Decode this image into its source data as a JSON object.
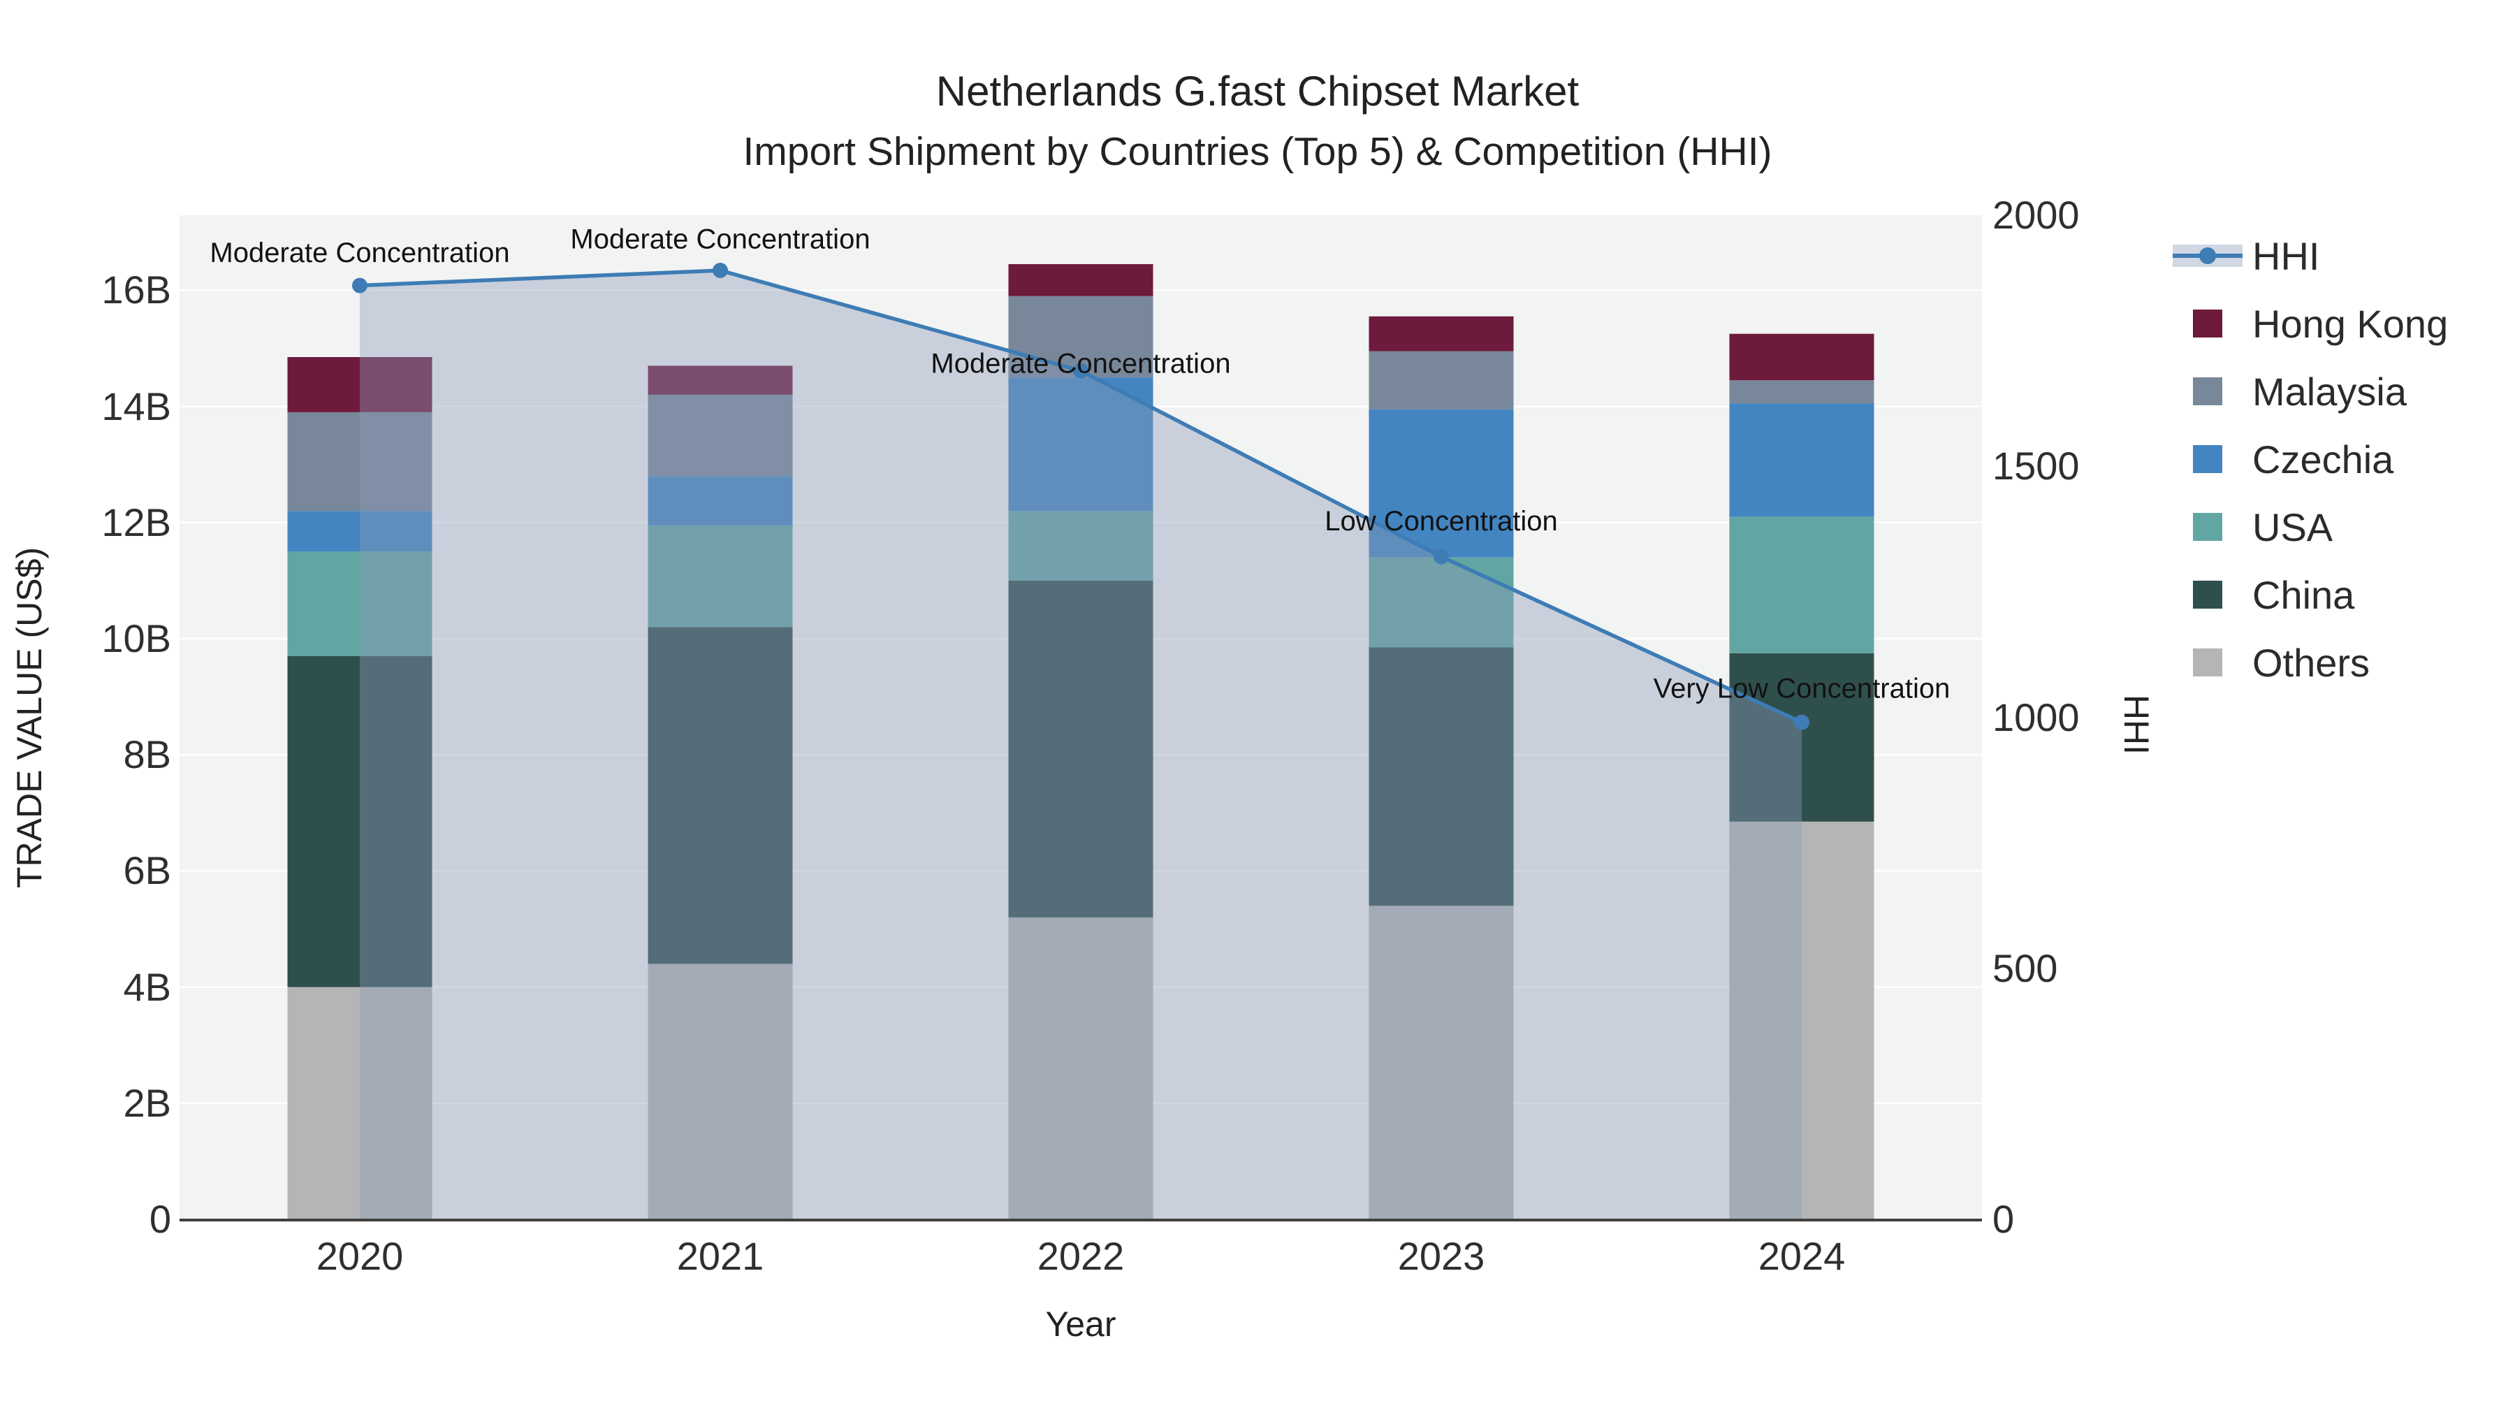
{
  "title": {
    "line1": "Netherlands G.fast Chipset Market",
    "line2": "Import Shipment by Countries (Top 5) & Competition (HHI)"
  },
  "chart_data": {
    "type": "bar",
    "stacked": true,
    "title": "Netherlands G.fast Chipset Market — Import Shipment by Countries (Top 5) & Competition (HHI)",
    "categories": [
      "2020",
      "2021",
      "2022",
      "2023",
      "2024"
    ],
    "value_unit": "billion US$",
    "series": [
      {
        "name": "Others",
        "color": "#b3b6b5",
        "values": [
          4.0,
          4.4,
          5.2,
          5.4,
          6.85
        ]
      },
      {
        "name": "China",
        "color": "#2f4f4d",
        "values": [
          5.7,
          5.8,
          5.8,
          4.45,
          2.9
        ]
      },
      {
        "name": "USA",
        "color": "#62a6a3",
        "values": [
          1.8,
          1.75,
          1.2,
          1.55,
          2.35
        ]
      },
      {
        "name": "Czechia",
        "color": "#4285c0",
        "values": [
          0.7,
          0.85,
          2.3,
          2.55,
          1.95
        ]
      },
      {
        "name": "Malaysia",
        "color": "#78889a",
        "values": [
          1.7,
          1.4,
          1.4,
          1.0,
          0.4
        ]
      },
      {
        "name": "Hong Kong",
        "color": "#6e1a3c",
        "values": [
          0.95,
          0.5,
          0.55,
          0.6,
          0.8
        ]
      }
    ],
    "bar_totals": [
      14.85,
      14.7,
      16.45,
      15.55,
      15.25
    ],
    "line_series": {
      "name": "HHI",
      "axis": "right",
      "color": "#3e7cb5",
      "fill": "rgba(141,155,184,0.40)",
      "values": [
        1860,
        1890,
        1690,
        1320,
        990
      ]
    },
    "annotations": [
      {
        "x": "2020",
        "text": "Moderate Concentration",
        "dy": -44
      },
      {
        "x": "2021",
        "text": "Moderate Concentration",
        "dy": -42
      },
      {
        "x": "2022",
        "text": "Moderate Concentration",
        "dy": -8
      },
      {
        "x": "2023",
        "text": "Low Concentration",
        "dy": -48
      },
      {
        "x": "2024",
        "text": "Very Low Concentration",
        "dy": -46
      }
    ],
    "x_axis": {
      "label": "Year"
    },
    "y_left": {
      "label": "TRADE VALUE (US$)",
      "ticks": [
        "0",
        "2B",
        "4B",
        "6B",
        "8B",
        "10B",
        "12B",
        "14B",
        "16B"
      ],
      "tick_values": [
        0,
        2,
        4,
        6,
        8,
        10,
        12,
        14,
        16
      ],
      "range": [
        0,
        17.3
      ]
    },
    "y_right": {
      "label": "HHI",
      "ticks": [
        "0",
        "500",
        "1000",
        "1500",
        "2000"
      ],
      "tick_values": [
        0,
        500,
        1000,
        1500,
        2000
      ],
      "range": [
        0,
        2000
      ]
    },
    "legend_order": [
      "HHI",
      "Hong Kong",
      "Malaysia",
      "Czechia",
      "USA",
      "China",
      "Others"
    ],
    "grid": true,
    "legend_position": "right",
    "plot_bg_color": "#f2f3f3",
    "grid_color": "#ffffff"
  }
}
